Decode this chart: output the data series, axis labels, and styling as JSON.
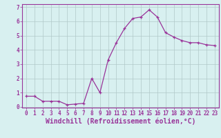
{
  "x": [
    0,
    1,
    2,
    3,
    4,
    5,
    6,
    7,
    8,
    9,
    10,
    11,
    12,
    13,
    14,
    15,
    16,
    17,
    18,
    19,
    20,
    21,
    22,
    23
  ],
  "y": [
    0.75,
    0.75,
    0.4,
    0.4,
    0.4,
    0.15,
    0.2,
    0.25,
    2.0,
    1.0,
    3.3,
    4.5,
    5.5,
    6.2,
    6.3,
    6.8,
    6.3,
    5.2,
    4.9,
    4.65,
    4.5,
    4.5,
    4.35,
    4.3
  ],
  "line_color": "#993399",
  "marker": "+",
  "bg_color": "#d8f0f0",
  "grid_color": "#b0c8c8",
  "xlabel": "Windchill (Refroidissement éolien,°C)",
  "xlabel_color": "#993399",
  "ylim": [
    -0.05,
    7.2
  ],
  "xlim": [
    -0.5,
    23.5
  ],
  "yticks": [
    0,
    1,
    2,
    3,
    4,
    5,
    6,
    7
  ],
  "xticks": [
    0,
    1,
    2,
    3,
    4,
    5,
    6,
    7,
    8,
    9,
    10,
    11,
    12,
    13,
    14,
    15,
    16,
    17,
    18,
    19,
    20,
    21,
    22,
    23
  ],
  "tick_color": "#993399",
  "tick_fontsize": 5.5,
  "xlabel_fontsize": 7.0,
  "spine_color": "#993399"
}
